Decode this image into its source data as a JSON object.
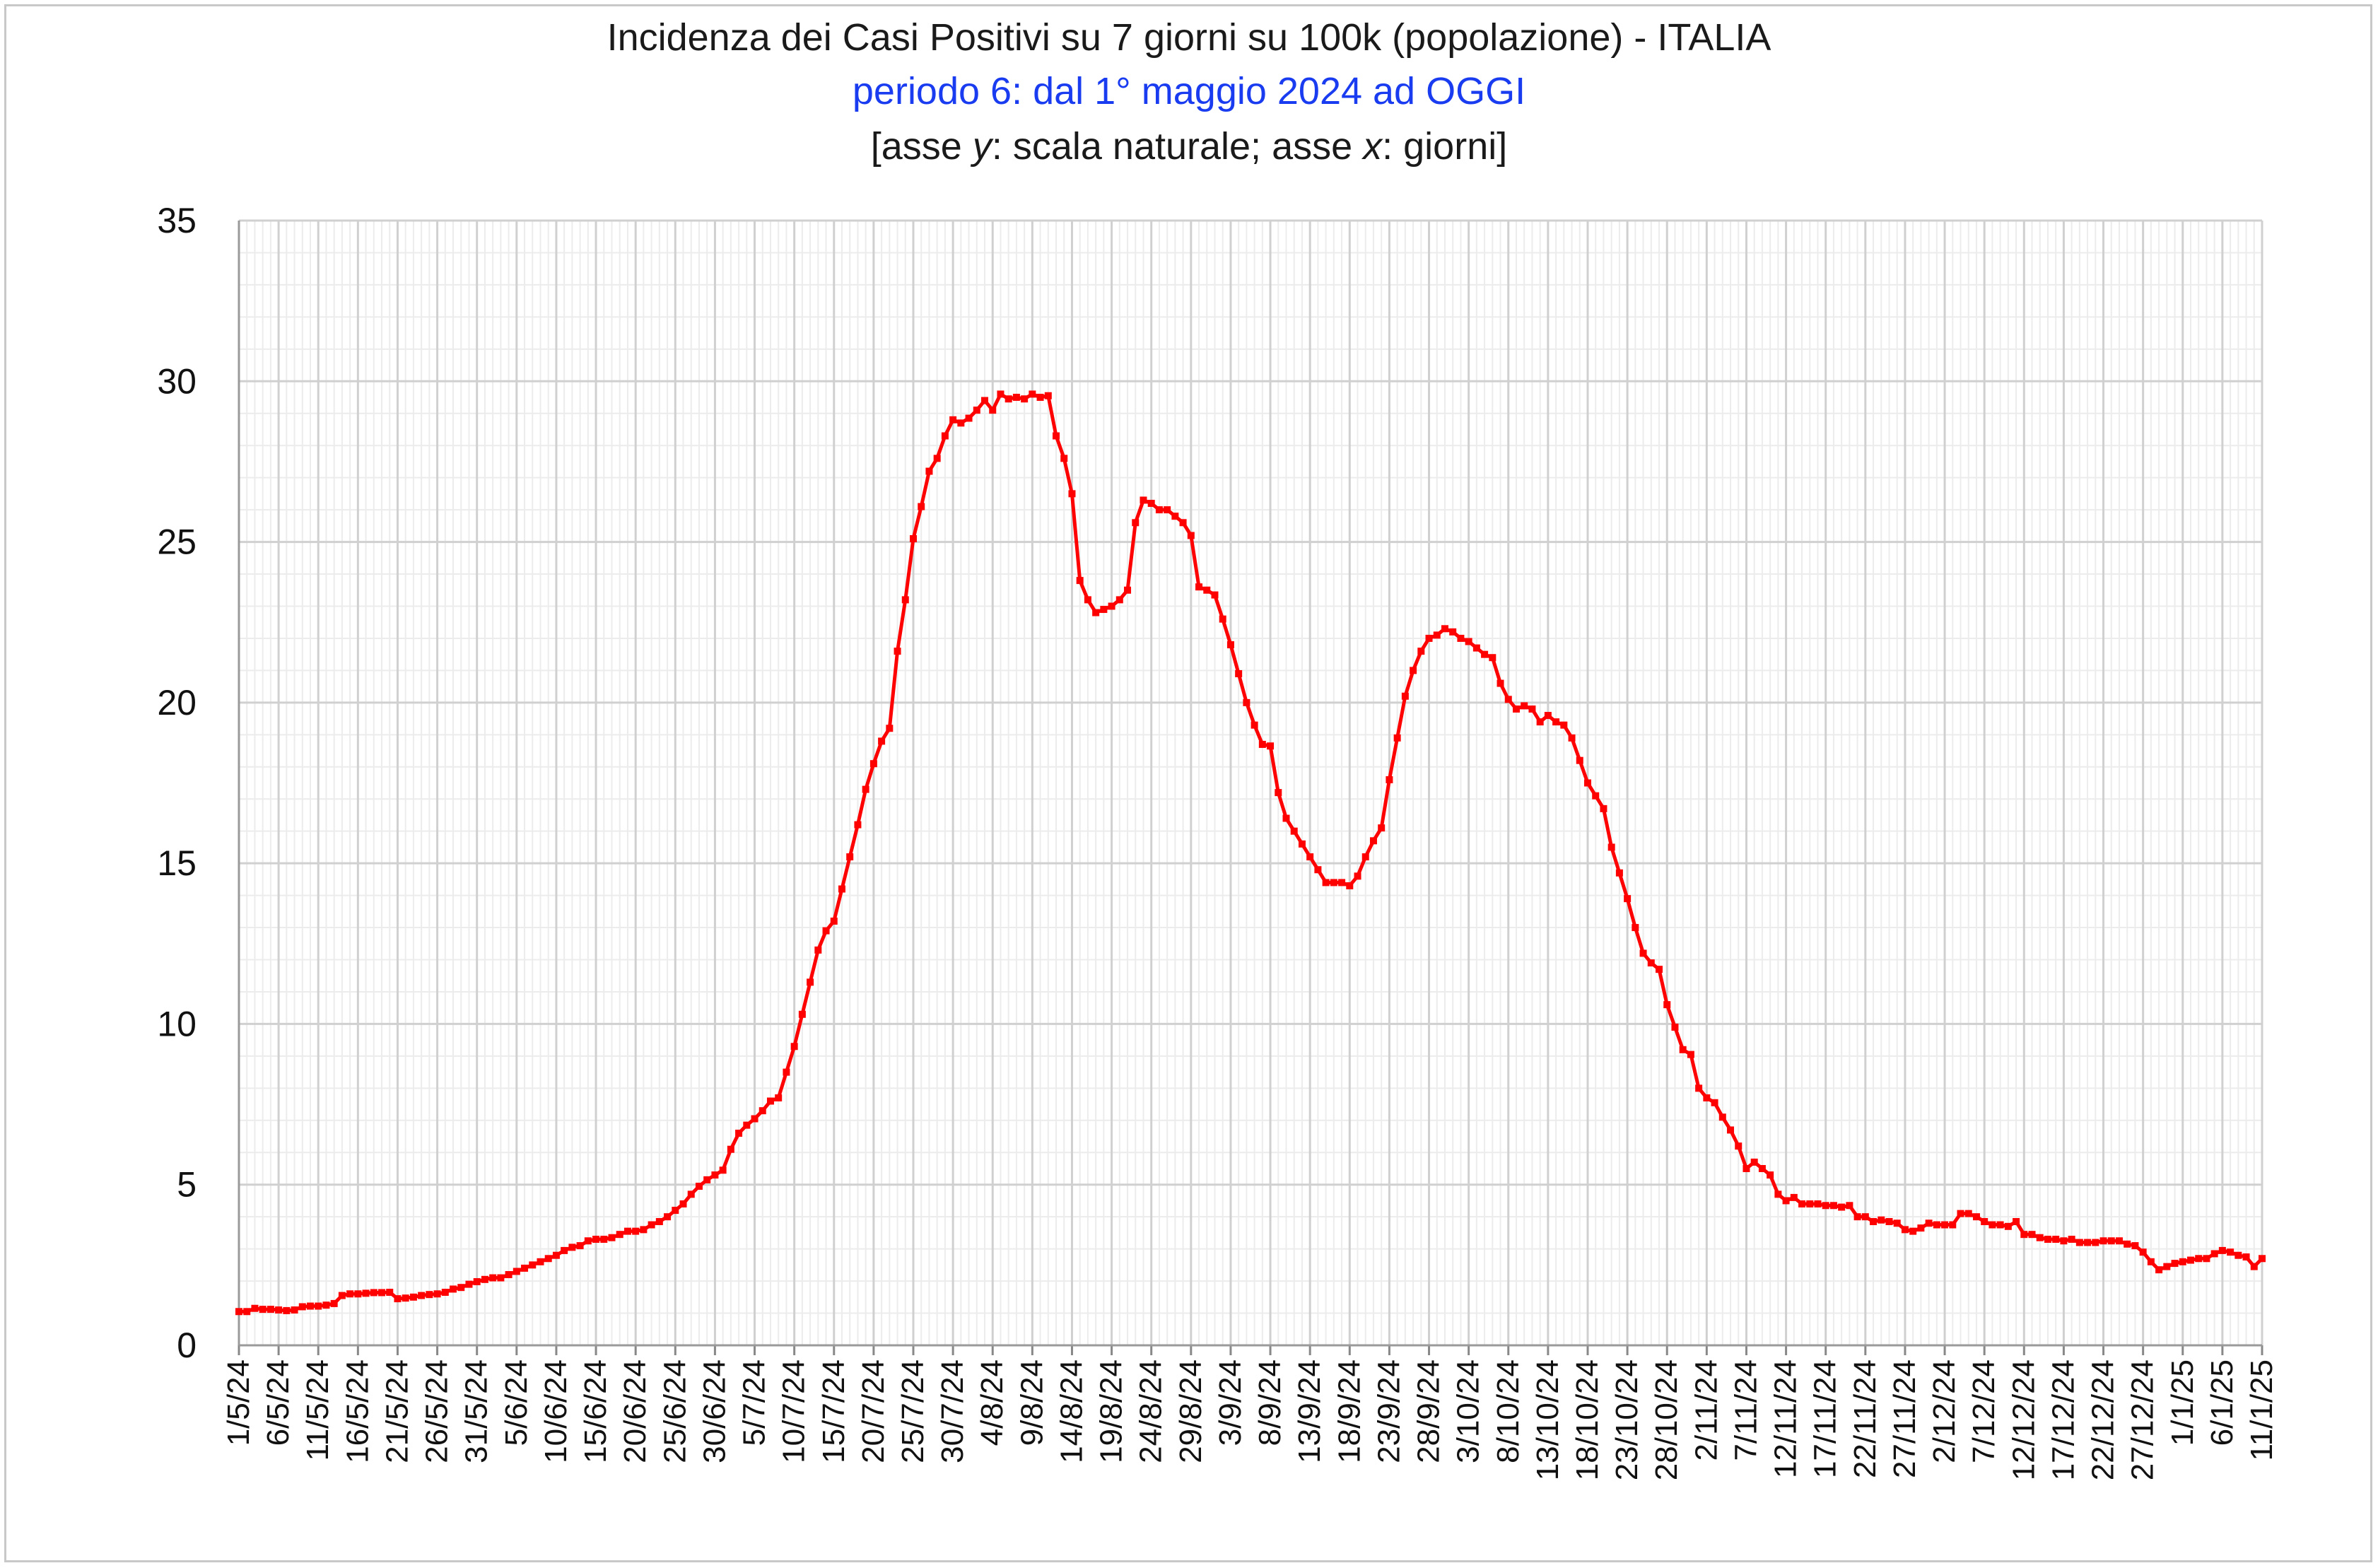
{
  "chart_data": {
    "type": "line",
    "title": "Incidenza dei Casi Positivi su 7 giorni su 100k (popolazione) - ITALIA",
    "subtitle": "periodo 6: dal 1° maggio 2024 ad OGGI",
    "axis_note": {
      "open": "[asse ",
      "y_var": "y",
      "y_desc": ": scala naturale; asse ",
      "x_var": "x",
      "x_desc": ": giorni]"
    },
    "xlabel": "",
    "ylabel": "",
    "ylim": [
      0,
      35
    ],
    "yticks": [
      0,
      5,
      10,
      15,
      20,
      25,
      30,
      35
    ],
    "x_start": "1/5/24",
    "x_range_days": [
      0,
      255
    ],
    "xtick_labels": [
      "1/5/24",
      "6/5/24",
      "11/5/24",
      "16/5/24",
      "21/5/24",
      "26/5/24",
      "31/5/24",
      "5/6/24",
      "10/6/24",
      "15/6/24",
      "20/6/24",
      "25/6/24",
      "30/6/24",
      "5/7/24",
      "10/7/24",
      "15/7/24",
      "20/7/24",
      "25/7/24",
      "30/7/24",
      "4/8/24",
      "9/8/24",
      "14/8/24",
      "19/8/24",
      "24/8/24",
      "29/8/24",
      "3/9/24",
      "8/9/24",
      "13/9/24",
      "18/9/24",
      "23/9/24",
      "28/9/24",
      "3/10/24",
      "8/10/24",
      "13/10/24",
      "18/10/24",
      "23/10/24",
      "28/10/24",
      "2/11/24",
      "7/11/24",
      "12/11/24",
      "17/11/24",
      "22/11/24",
      "27/11/24",
      "2/12/24",
      "7/12/24",
      "12/12/24",
      "17/12/24",
      "22/12/24",
      "27/12/24",
      "1/1/25",
      "6/1/25",
      "11/1/25"
    ],
    "grid": true,
    "series": [
      {
        "name": "",
        "color": "#ff0000",
        "values": [
          1.05,
          1.05,
          1.15,
          1.12,
          1.12,
          1.1,
          1.08,
          1.1,
          1.2,
          1.22,
          1.22,
          1.25,
          1.3,
          1.55,
          1.6,
          1.6,
          1.62,
          1.64,
          1.64,
          1.65,
          1.45,
          1.47,
          1.5,
          1.55,
          1.58,
          1.6,
          1.65,
          1.75,
          1.8,
          1.9,
          1.98,
          2.05,
          2.1,
          2.1,
          2.2,
          2.3,
          2.4,
          2.5,
          2.6,
          2.7,
          2.8,
          2.95,
          3.05,
          3.1,
          3.25,
          3.3,
          3.3,
          3.35,
          3.45,
          3.55,
          3.55,
          3.6,
          3.75,
          3.85,
          4.0,
          4.2,
          4.4,
          4.7,
          4.95,
          5.15,
          5.3,
          5.45,
          6.1,
          6.6,
          6.85,
          7.05,
          7.3,
          7.6,
          7.7,
          8.5,
          9.3,
          10.3,
          11.3,
          12.3,
          12.9,
          13.2,
          14.2,
          15.2,
          16.2,
          17.3,
          18.1,
          18.8,
          19.2,
          21.6,
          23.2,
          25.1,
          26.1,
          27.2,
          27.6,
          28.3,
          28.8,
          28.7,
          28.85,
          29.1,
          29.4,
          29.1,
          29.6,
          29.45,
          29.5,
          29.45,
          29.6,
          29.5,
          29.55,
          28.3,
          27.6,
          26.5,
          23.8,
          23.2,
          22.8,
          22.9,
          23.0,
          23.2,
          23.5,
          25.6,
          26.3,
          26.2,
          26.0,
          26.0,
          25.8,
          25.6,
          25.2,
          23.6,
          23.5,
          23.35,
          22.6,
          21.8,
          20.9,
          20.0,
          19.3,
          18.7,
          18.65,
          17.2,
          16.4,
          16.0,
          15.6,
          15.2,
          14.8,
          14.4,
          14.4,
          14.4,
          14.3,
          14.6,
          15.2,
          15.7,
          16.1,
          17.6,
          18.9,
          20.2,
          21.0,
          21.6,
          22.0,
          22.1,
          22.3,
          22.2,
          22.0,
          21.9,
          21.7,
          21.5,
          21.4,
          20.6,
          20.1,
          19.8,
          19.9,
          19.8,
          19.4,
          19.6,
          19.4,
          19.3,
          18.9,
          18.2,
          17.5,
          17.1,
          16.7,
          15.5,
          14.7,
          13.9,
          13.0,
          12.2,
          11.9,
          11.7,
          10.6,
          9.9,
          9.2,
          9.05,
          8.0,
          7.7,
          7.55,
          7.1,
          6.7,
          6.2,
          5.5,
          5.7,
          5.5,
          5.3,
          4.7,
          4.5,
          4.6,
          4.4,
          4.4,
          4.4,
          4.35,
          4.35,
          4.3,
          4.35,
          4.0,
          4.0,
          3.85,
          3.9,
          3.85,
          3.8,
          3.6,
          3.55,
          3.65,
          3.8,
          3.75,
          3.75,
          3.75,
          4.1,
          4.1,
          4.0,
          3.85,
          3.75,
          3.75,
          3.7,
          3.85,
          3.45,
          3.45,
          3.35,
          3.3,
          3.3,
          3.25,
          3.3,
          3.2,
          3.2,
          3.2,
          3.25,
          3.25,
          3.25,
          3.15,
          3.1,
          2.9,
          2.6,
          2.35,
          2.45,
          2.55,
          2.6,
          2.65,
          2.7,
          2.7,
          2.85,
          2.95,
          2.9,
          2.8,
          2.75,
          2.45,
          2.7
        ]
      }
    ]
  }
}
